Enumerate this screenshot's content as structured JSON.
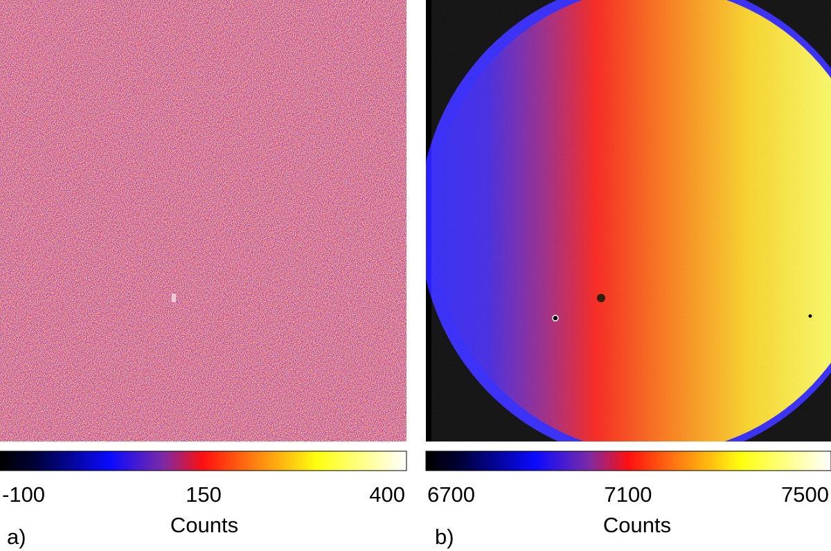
{
  "panels": [
    {
      "label": "a)",
      "colorbar": {
        "ticks": [
          -100,
          150,
          400
        ],
        "label": "Counts"
      }
    },
    {
      "label": "b)",
      "colorbar": {
        "ticks": [
          6700,
          7100,
          7500
        ],
        "label": "Counts"
      }
    }
  ]
}
